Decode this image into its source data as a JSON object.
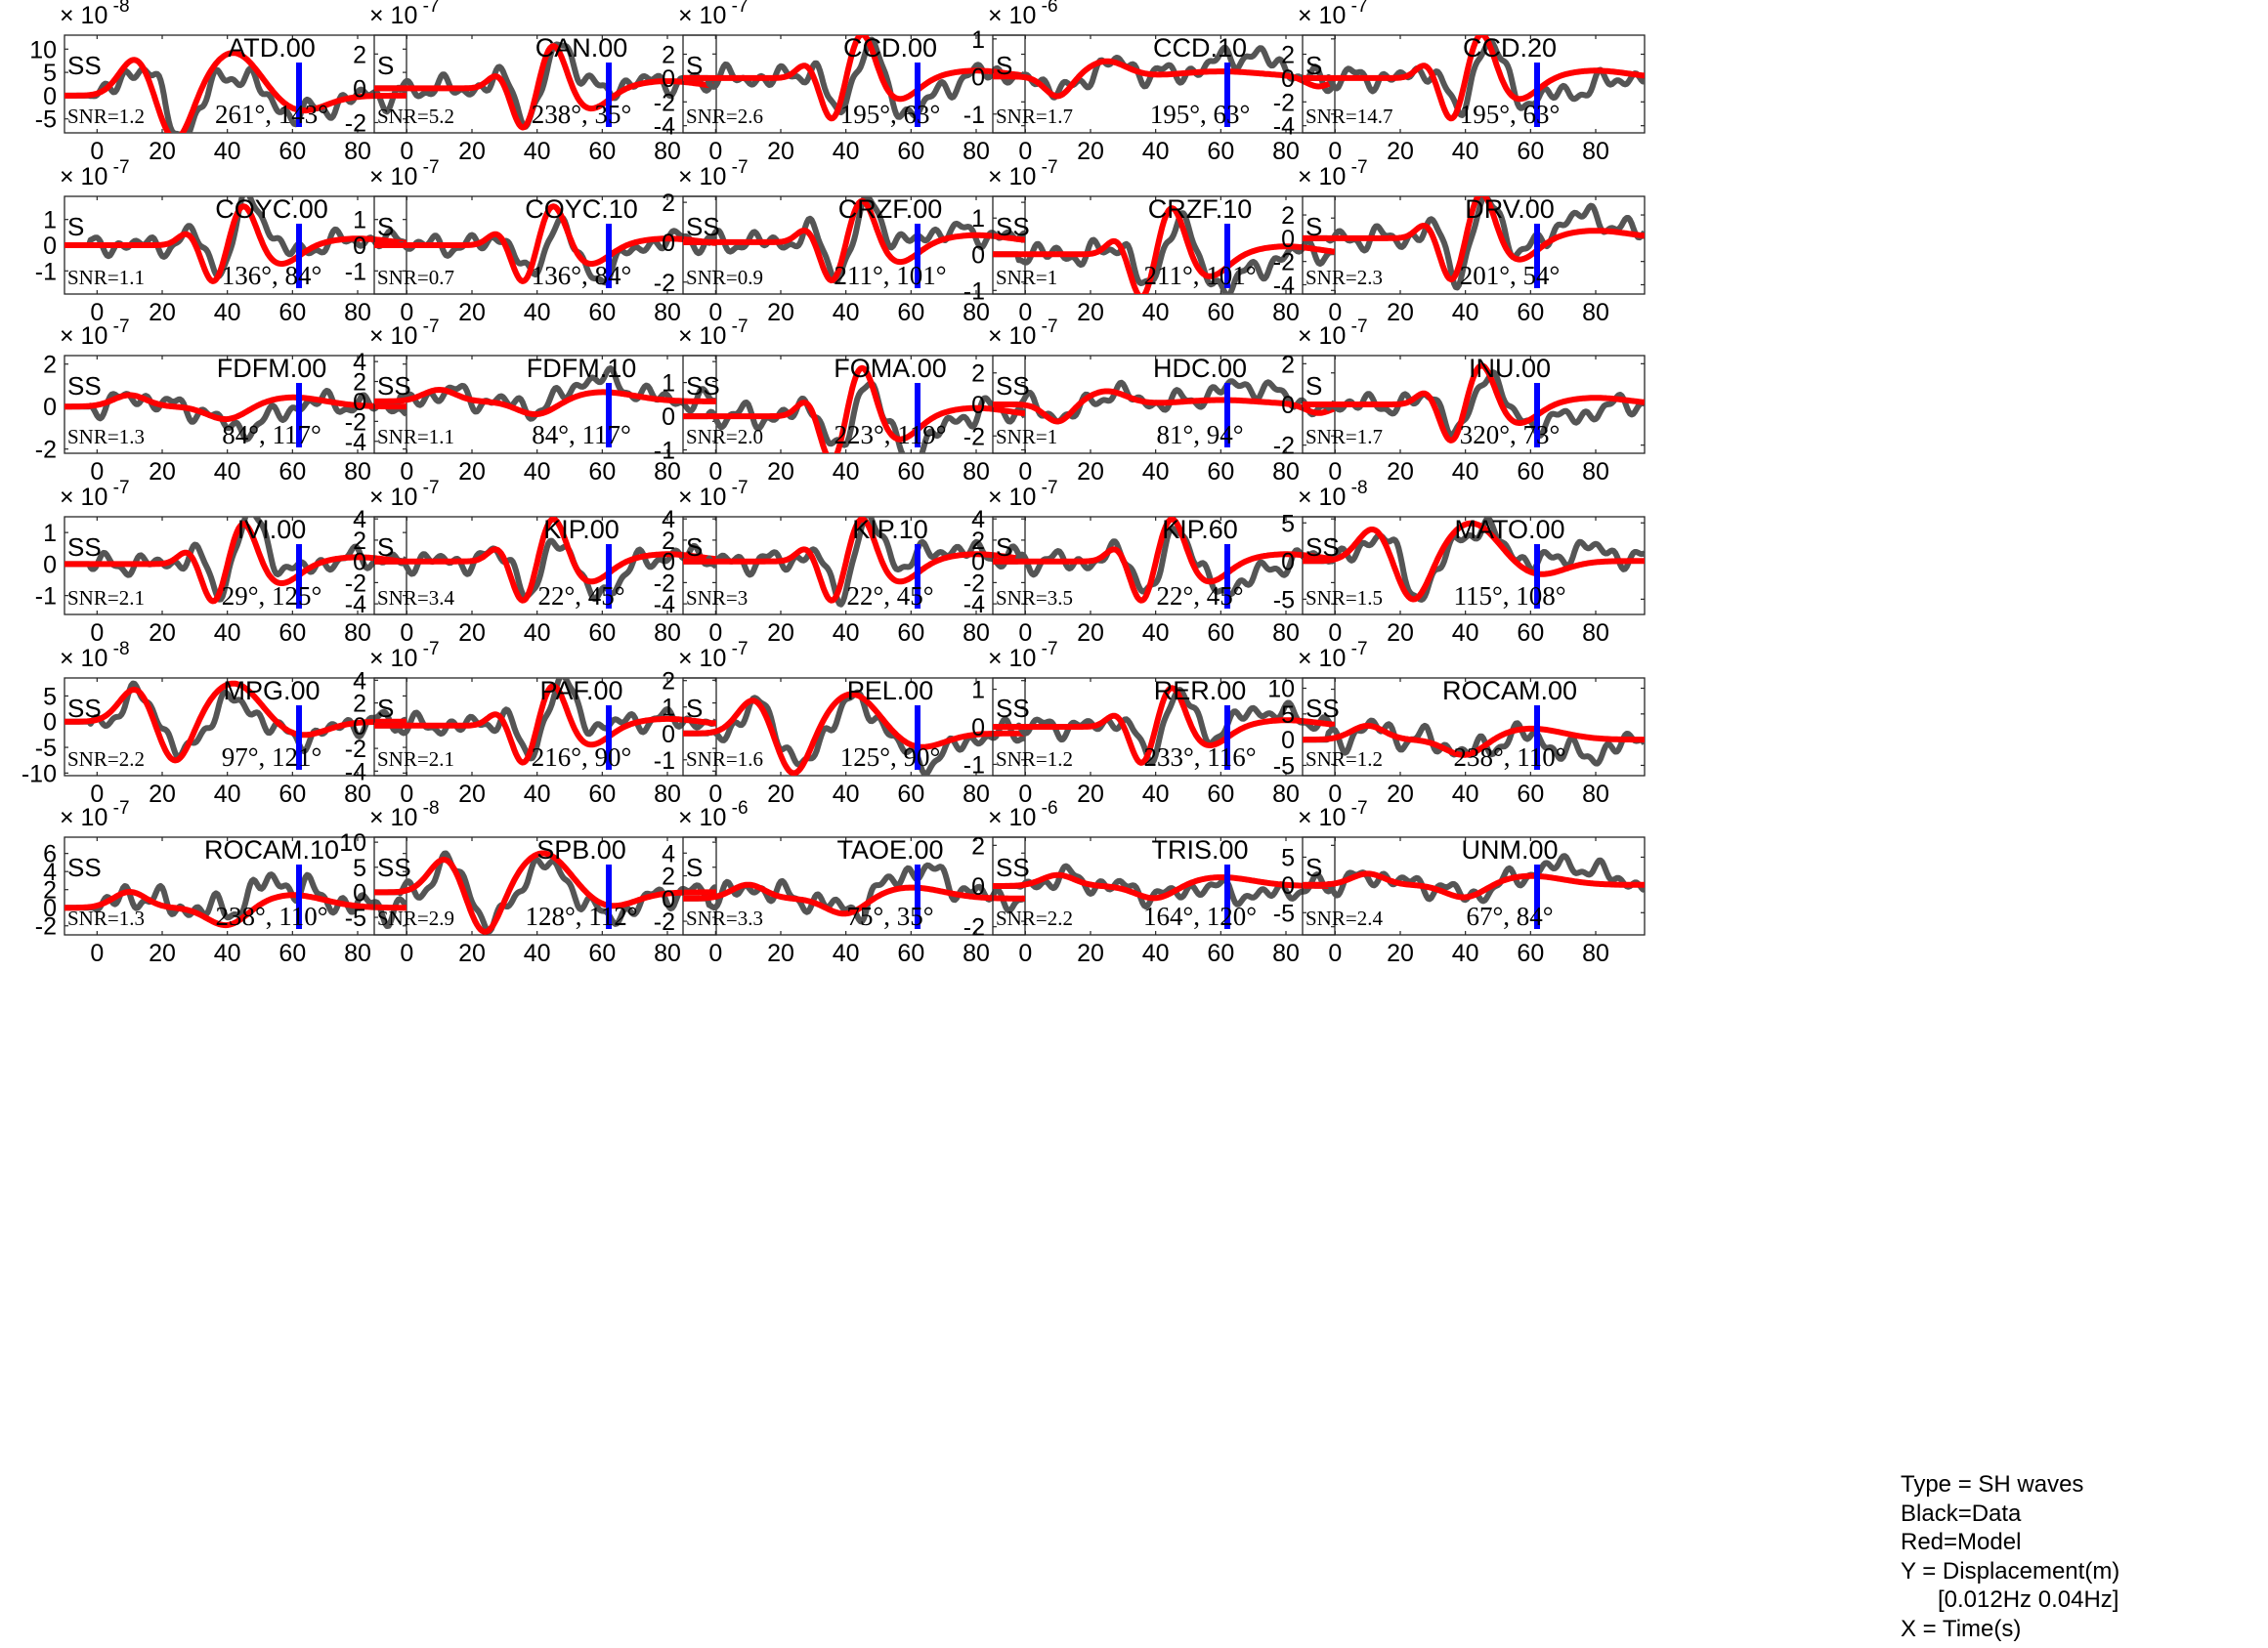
{
  "chart_data": {
    "type": "line",
    "x_ticks": [
      0,
      20,
      40,
      60,
      80
    ],
    "xlim": [
      -10,
      95
    ],
    "pick_time": 62,
    "colors": {
      "data": "#555555",
      "model": "#ff0000",
      "marker": "#0000ff"
    },
    "panels": [
      {
        "station": "ATD.00",
        "phase": "SS",
        "snr": "SNR=1.2",
        "angles": "261°, 143°",
        "exp": "-8",
        "yticks": [
          10,
          5,
          0,
          -5
        ],
        "ylim": [
          -8,
          13
        ],
        "style": 1
      },
      {
        "station": "CAN.00",
        "phase": "S",
        "snr": "SNR=5.2",
        "angles": "238°, 35°",
        "exp": "-7",
        "yticks": [
          2,
          0,
          -2
        ],
        "ylim": [
          -2.6,
          3.1
        ],
        "style": 0
      },
      {
        "station": "CCD.00",
        "phase": "S",
        "snr": "SNR=2.6",
        "angles": "195°, 63°",
        "exp": "-7",
        "yticks": [
          2,
          0,
          -2,
          -4
        ],
        "ylim": [
          -4.6,
          3.6
        ],
        "style": 0
      },
      {
        "station": "CCD.10",
        "phase": "S",
        "snr": "SNR=1.7",
        "angles": "195°, 63°",
        "exp": "-6",
        "yticks": [
          1,
          0,
          -1
        ],
        "ylim": [
          -1.5,
          1.1
        ],
        "style": 2
      },
      {
        "station": "CCD.20",
        "phase": "S",
        "snr": "SNR=14.7",
        "angles": "195°, 63°",
        "exp": "-7",
        "yticks": [
          2,
          0,
          -2,
          -4
        ],
        "ylim": [
          -4.6,
          3.6
        ],
        "style": 0
      },
      {
        "station": "COYC.00",
        "phase": "S",
        "snr": "SNR=1.1",
        "angles": "136°, 84°",
        "exp": "-7",
        "yticks": [
          1,
          0,
          -1
        ],
        "ylim": [
          -1.9,
          1.9
        ],
        "style": 0
      },
      {
        "station": "COYC.10",
        "phase": "S",
        "snr": "SNR=0.7",
        "angles": "136°, 84°",
        "exp": "-7",
        "yticks": [
          1,
          0,
          -1
        ],
        "ylim": [
          -1.9,
          1.9
        ],
        "style": 0
      },
      {
        "station": "CRZF.00",
        "phase": "SS",
        "snr": "SNR=0.9",
        "angles": "211°, 101°",
        "exp": "-7",
        "yticks": [
          2,
          0,
          -2
        ],
        "ylim": [
          -2.6,
          2.3
        ],
        "style": 0
      },
      {
        "station": "CRZF.10",
        "phase": "SS",
        "snr": "SNR=1",
        "angles": "211°, 101°",
        "exp": "-7",
        "yticks": [
          1,
          0,
          -1
        ],
        "ylim": [
          -1.1,
          1.6
        ],
        "style": 0
      },
      {
        "station": "DRV.00",
        "phase": "S",
        "snr": "SNR=2.3",
        "angles": "201°, 54°",
        "exp": "-7",
        "yticks": [
          2,
          0,
          -2,
          -4
        ],
        "ylim": [
          -4.8,
          3.6
        ],
        "style": 0
      },
      {
        "station": "FDFM.00",
        "phase": "SS",
        "snr": "SNR=1.3",
        "angles": "84°, 117°",
        "exp": "-7",
        "yticks": [
          2,
          0,
          -2
        ],
        "ylim": [
          -2.2,
          2.4
        ],
        "style": 3
      },
      {
        "station": "FDFM.10",
        "phase": "SS",
        "snr": "SNR=1.1",
        "angles": "84°, 117°",
        "exp": "-7",
        "yticks": [
          4,
          2,
          0,
          -2,
          -4
        ],
        "ylim": [
          -5.2,
          4.6
        ],
        "style": 3
      },
      {
        "station": "FOMA.00",
        "phase": "SS",
        "snr": "SNR=2.0",
        "angles": "223°, 119°",
        "exp": "-7",
        "yticks": [
          1,
          0,
          -1
        ],
        "ylim": [
          -1.1,
          1.8
        ],
        "style": 0
      },
      {
        "station": "HDC.00",
        "phase": "SS",
        "snr": "SNR=1",
        "angles": "81°, 94°",
        "exp": "-7",
        "yticks": [
          2,
          0,
          -2
        ],
        "ylim": [
          -3.1,
          3.1
        ],
        "style": 2
      },
      {
        "station": "INU.00",
        "phase": "S",
        "snr": "SNR=1.7",
        "angles": "320°, 73°",
        "exp": "-7",
        "yticks": [
          2,
          0,
          -2
        ],
        "ylim": [
          -2.4,
          2.4
        ],
        "style": 0
      },
      {
        "station": "IVI.00",
        "phase": "SS",
        "snr": "SNR=2.1",
        "angles": "29°, 125°",
        "exp": "-7",
        "yticks": [
          1,
          0,
          -1
        ],
        "ylim": [
          -1.6,
          1.5
        ],
        "style": 0
      },
      {
        "station": "KIP.00",
        "phase": "S",
        "snr": "SNR=3.4",
        "angles": "22°, 45°",
        "exp": "-7",
        "yticks": [
          4,
          2,
          0,
          -2,
          -4
        ],
        "ylim": [
          -5,
          4.2
        ],
        "style": 0
      },
      {
        "station": "KIP.10",
        "phase": "S",
        "snr": "SNR=3",
        "angles": "22°, 45°",
        "exp": "-7",
        "yticks": [
          4,
          2,
          0,
          -2,
          -4
        ],
        "ylim": [
          -5,
          4.2
        ],
        "style": 0
      },
      {
        "station": "KIP.60",
        "phase": "S",
        "snr": "SNR=3.5",
        "angles": "22°, 45°",
        "exp": "-7",
        "yticks": [
          4,
          2,
          0,
          -2,
          -4
        ],
        "ylim": [
          -5,
          4.2
        ],
        "style": 0
      },
      {
        "station": "MATO.00",
        "phase": "SS",
        "snr": "SNR=1.5",
        "angles": "115°, 108°",
        "exp": "-8",
        "yticks": [
          5,
          0,
          -5
        ],
        "ylim": [
          -7,
          5.8
        ],
        "style": 1
      },
      {
        "station": "MPG.00",
        "phase": "SS",
        "snr": "SNR=2.2",
        "angles": "97°, 121°",
        "exp": "-8",
        "yticks": [
          5,
          0,
          -5,
          -10
        ],
        "ylim": [
          -10.5,
          8.5
        ],
        "style": 1
      },
      {
        "station": "PAF.00",
        "phase": "S",
        "snr": "SNR=2.1",
        "angles": "216°, 90°",
        "exp": "-7",
        "yticks": [
          4,
          2,
          0,
          -2,
          -4
        ],
        "ylim": [
          -4.4,
          4.2
        ],
        "style": 0
      },
      {
        "station": "PEL.00",
        "phase": "S",
        "snr": "SNR=1.6",
        "angles": "125°, 90°",
        "exp": "-7",
        "yticks": [
          2,
          1,
          0,
          -1
        ],
        "ylim": [
          -1.6,
          2.1
        ],
        "style": 1
      },
      {
        "station": "RER.00",
        "phase": "SS",
        "snr": "SNR=1.2",
        "angles": "233°, 116°",
        "exp": "-7",
        "yticks": [
          1,
          0,
          -1
        ],
        "ylim": [
          -1.3,
          1.3
        ],
        "style": 0
      },
      {
        "station": "ROCAM.00",
        "phase": "SS",
        "snr": "SNR=1.2",
        "angles": "238°, 110°",
        "exp": "-7",
        "yticks": [
          10,
          5,
          0,
          -5
        ],
        "ylim": [
          -7,
          12
        ],
        "style": 3
      },
      {
        "station": "ROCAM.10",
        "phase": "SS",
        "snr": "SNR=1.3",
        "angles": "238°, 110°",
        "exp": "-7",
        "yticks": [
          6,
          4,
          2,
          0,
          -2
        ],
        "ylim": [
          -3,
          7.8
        ],
        "style": 3
      },
      {
        "station": "SPB.00",
        "phase": "SS",
        "snr": "SNR=2.9",
        "angles": "128°, 112°",
        "exp": "-8",
        "yticks": [
          10,
          5,
          0,
          -5
        ],
        "ylim": [
          -8.5,
          11
        ],
        "style": 1
      },
      {
        "station": "TAOE.00",
        "phase": "S",
        "snr": "SNR=3.3",
        "angles": "75°, 35°",
        "exp": "-6",
        "yticks": [
          4,
          2,
          0,
          -2
        ],
        "ylim": [
          -3.2,
          5.4
        ],
        "style": 3
      },
      {
        "station": "TRIS.00",
        "phase": "SS",
        "snr": "SNR=2.2",
        "angles": "164°, 120°",
        "exp": "-6",
        "yticks": [
          2,
          0,
          -2
        ],
        "ylim": [
          -2.4,
          2.4
        ],
        "style": 3
      },
      {
        "station": "UNM.00",
        "phase": "S",
        "snr": "SNR=2.4",
        "angles": "67°, 84°",
        "exp": "-7",
        "yticks": [
          5,
          0,
          -5
        ],
        "ylim": [
          -9,
          8.6
        ],
        "style": 3
      }
    ]
  },
  "legend": {
    "type": "Type = SH waves",
    "black": "Black=Data",
    "red": "Red=Model",
    "y": "Y = Displacement(m)",
    "band": "[0.012Hz 0.04Hz]",
    "x": "X = Time(s)"
  }
}
